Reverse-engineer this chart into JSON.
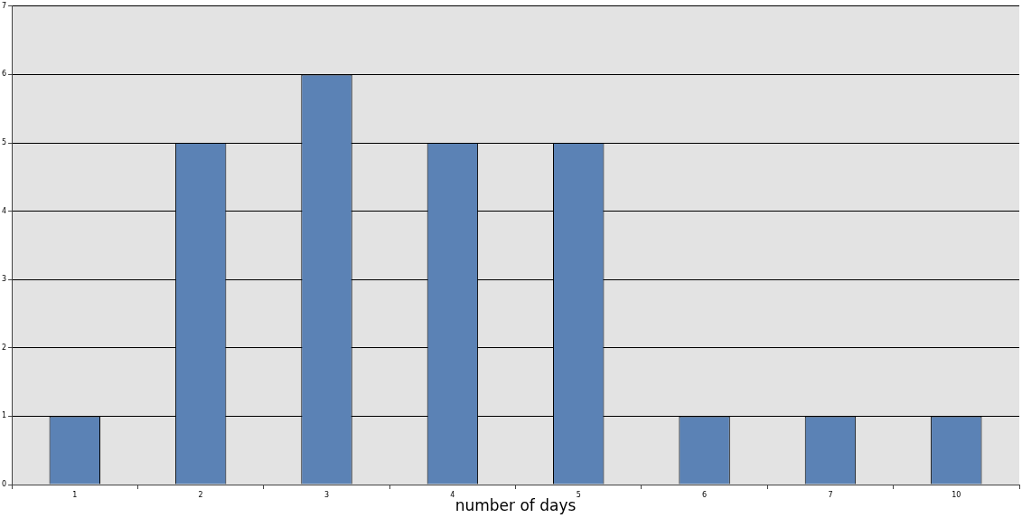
{
  "chart_data": {
    "type": "bar",
    "xlabel": "number of days",
    "categories": [
      "1",
      "2",
      "3",
      "4",
      "5",
      "6",
      "7",
      "10"
    ],
    "values": [
      1,
      5,
      6,
      5,
      5,
      1,
      1,
      1
    ],
    "color": "#5b82b5",
    "ylim": [
      0,
      7
    ],
    "yticks": [
      0,
      1,
      2,
      3,
      4,
      5,
      6,
      7
    ],
    "grid": "y",
    "legend": false
  }
}
